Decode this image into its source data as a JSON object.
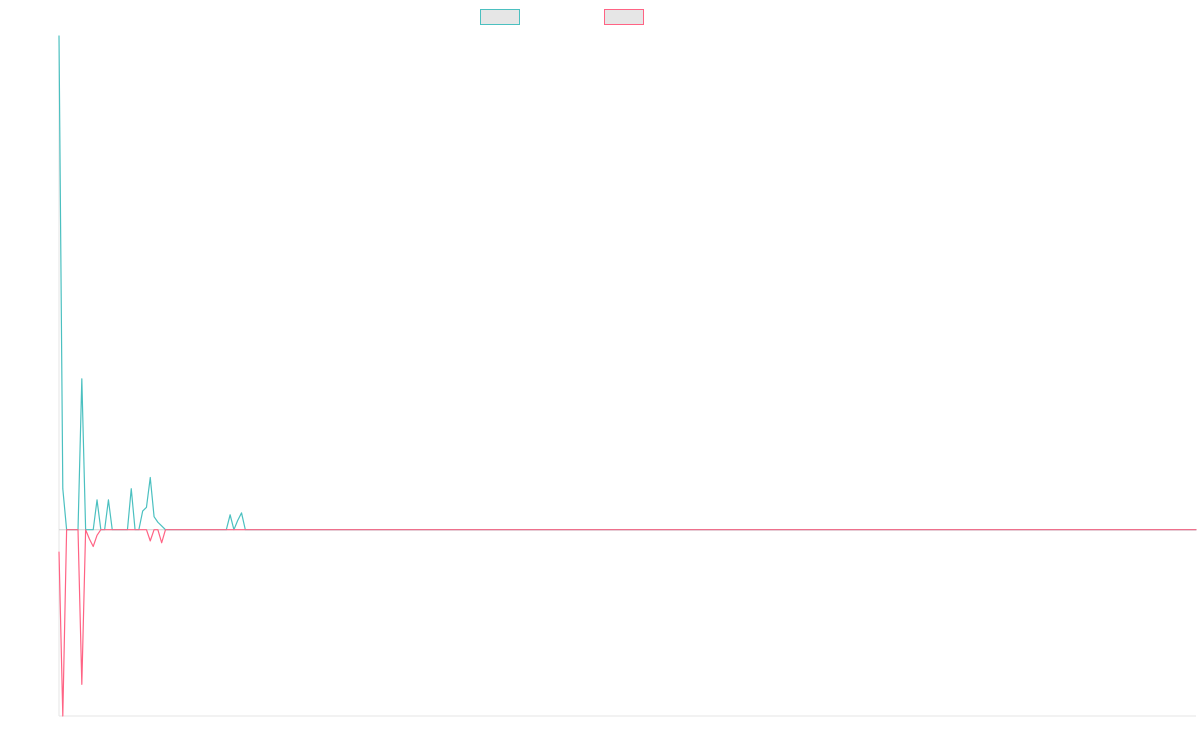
{
  "chart_data": {
    "type": "line",
    "title": "",
    "xlabel": "",
    "ylabel": "",
    "legend": {
      "placement": "top-center",
      "entries": [
        {
          "name": "",
          "color": "#4bc0c0"
        },
        {
          "name": "",
          "color": "#ff6384"
        }
      ]
    },
    "grid": false,
    "ylim": [
      -100,
      265
    ],
    "x": [
      0,
      1,
      2,
      3,
      4,
      5,
      6,
      7,
      8,
      9,
      10,
      11,
      12,
      13,
      14,
      15,
      16,
      17,
      18,
      19,
      20,
      21,
      22,
      23,
      24,
      25,
      26,
      27,
      28,
      29,
      30,
      31,
      32,
      33,
      34,
      35,
      36,
      37,
      38,
      39,
      40,
      41,
      42,
      43,
      44,
      45,
      46,
      47,
      48,
      49,
      50,
      51,
      52,
      53,
      54,
      55,
      56,
      57,
      58,
      59,
      60,
      61,
      62,
      63,
      64,
      65,
      66,
      67,
      68,
      69,
      70,
      71,
      72,
      73,
      74,
      75,
      76,
      77,
      78,
      79,
      80,
      81,
      82,
      83,
      84,
      85,
      86,
      87,
      88,
      89,
      90,
      91,
      92,
      93,
      94,
      95,
      96,
      97,
      98,
      99,
      100,
      101,
      102,
      103,
      104,
      105,
      106,
      107,
      108,
      109,
      110,
      111,
      112,
      113,
      114,
      115,
      116,
      117,
      118,
      119,
      120,
      121,
      122,
      123,
      124,
      125,
      126,
      127,
      128,
      129,
      130,
      131,
      132,
      133,
      134,
      135,
      136,
      137,
      138,
      139,
      140,
      141,
      142,
      143,
      144,
      145,
      146,
      147,
      148,
      149,
      150,
      151,
      152,
      153,
      154,
      155,
      156,
      157,
      158,
      159,
      160,
      161,
      162,
      163,
      164,
      165,
      166,
      167,
      168,
      169,
      170,
      171,
      172,
      173,
      174,
      175,
      176,
      177,
      178,
      179,
      180,
      181,
      182,
      183,
      184,
      185,
      186,
      187,
      188,
      189,
      190,
      191,
      192,
      193,
      194,
      195,
      196,
      197,
      198,
      199,
      200,
      201,
      202,
      203,
      204,
      205,
      206,
      207,
      208,
      209,
      210,
      211,
      212,
      213,
      214,
      215,
      216,
      217,
      218,
      219,
      220,
      221,
      222,
      223,
      224,
      225,
      226,
      227,
      228,
      229,
      230,
      231,
      232,
      233,
      234,
      235,
      236,
      237,
      238,
      239,
      240,
      241,
      242,
      243,
      244,
      245,
      246,
      247,
      248,
      249,
      250,
      251,
      252,
      253,
      254,
      255,
      256,
      257,
      258,
      259,
      260,
      261,
      262,
      263,
      264,
      265,
      266,
      267,
      268,
      269,
      270,
      271,
      272,
      273,
      274,
      275,
      276,
      277,
      278,
      279,
      280,
      281,
      282,
      283,
      284,
      285,
      286,
      287,
      288,
      289,
      290,
      291,
      292,
      293,
      294,
      295,
      296,
      297,
      298,
      299
    ],
    "series": [
      {
        "values": [
          265,
          22,
          0,
          0,
          0,
          0,
          81,
          0,
          0,
          0,
          16,
          0,
          0,
          16,
          0,
          0,
          0,
          0,
          0,
          22,
          0,
          0,
          10,
          12,
          28,
          7,
          4,
          2,
          0,
          0,
          0,
          0,
          0,
          0,
          0,
          0,
          0,
          0,
          0,
          0,
          0,
          0,
          0,
          0,
          0,
          8,
          0,
          5,
          9,
          0,
          0,
          0,
          0,
          0,
          0,
          0,
          0,
          0,
          0,
          0,
          0,
          0,
          0,
          0,
          0,
          0,
          0,
          0,
          0,
          0,
          0,
          0,
          0,
          0,
          0,
          0,
          0,
          0,
          0,
          0,
          0,
          0,
          0,
          0,
          0,
          0,
          0,
          0,
          0,
          0,
          0,
          0,
          0,
          0,
          0,
          0,
          0,
          0,
          0,
          0,
          0,
          0,
          0,
          0,
          0,
          0,
          0,
          0,
          0,
          0,
          0,
          0,
          0,
          0,
          0,
          0,
          0,
          0,
          0,
          0,
          0,
          0,
          0,
          0,
          0,
          0,
          0,
          0,
          0,
          0,
          0,
          0,
          0,
          0,
          0,
          0,
          0,
          0,
          0,
          0,
          0,
          0,
          0,
          0,
          0,
          0,
          0,
          0,
          0,
          0,
          0,
          0,
          0,
          0,
          0,
          0,
          0,
          0,
          0,
          0,
          0,
          0,
          0,
          0,
          0,
          0,
          0,
          0,
          0,
          0,
          0,
          0,
          0,
          0,
          0,
          0,
          0,
          0,
          0,
          0,
          0,
          0,
          0,
          0,
          0,
          0,
          0,
          0,
          0,
          0,
          0,
          0,
          0,
          0,
          0,
          0,
          0,
          0,
          0,
          0,
          0,
          0,
          0,
          0,
          0,
          0,
          0,
          0,
          0,
          0,
          0,
          0,
          0,
          0,
          0,
          0,
          0,
          0,
          0,
          0,
          0,
          0,
          0,
          0,
          0,
          0,
          0,
          0,
          0,
          0,
          0,
          0,
          0,
          0,
          0,
          0,
          0,
          0,
          0,
          0,
          0,
          0,
          0,
          0,
          0,
          0,
          0,
          0,
          0,
          0,
          0,
          0,
          0,
          0,
          0,
          0,
          0,
          0,
          0,
          0,
          0,
          0,
          0,
          0,
          0,
          0,
          0,
          0,
          0,
          0,
          0,
          0,
          0,
          0,
          0,
          0,
          0,
          0,
          0,
          0,
          0,
          0,
          0,
          0,
          0,
          0,
          0,
          0,
          0,
          0,
          0,
          0,
          0,
          0,
          0,
          0,
          0,
          0,
          0,
          0
        ]
      },
      {
        "values": [
          -12,
          -100,
          0,
          0,
          0,
          0,
          -83,
          0,
          -5,
          -9,
          -3,
          0,
          0,
          0,
          0,
          0,
          0,
          0,
          0,
          0,
          0,
          0,
          0,
          0,
          -6,
          0,
          0,
          -7,
          0,
          0,
          0,
          0,
          0,
          0,
          0,
          0,
          0,
          0,
          0,
          0,
          0,
          0,
          0,
          0,
          0,
          0,
          0,
          0,
          0,
          0,
          0,
          0,
          0,
          0,
          0,
          0,
          0,
          0,
          0,
          0,
          0,
          0,
          0,
          0,
          0,
          0,
          0,
          0,
          0,
          0,
          0,
          0,
          0,
          0,
          0,
          0,
          0,
          0,
          0,
          0,
          0,
          0,
          0,
          0,
          0,
          0,
          0,
          0,
          0,
          0,
          0,
          0,
          0,
          0,
          0,
          0,
          0,
          0,
          0,
          0,
          0,
          0,
          0,
          0,
          0,
          0,
          0,
          0,
          0,
          0,
          0,
          0,
          0,
          0,
          0,
          0,
          0,
          0,
          0,
          0,
          0,
          0,
          0,
          0,
          0,
          0,
          0,
          0,
          0,
          0,
          0,
          0,
          0,
          0,
          0,
          0,
          0,
          0,
          0,
          0,
          0,
          0,
          0,
          0,
          0,
          0,
          0,
          0,
          0,
          0,
          0,
          0,
          0,
          0,
          0,
          0,
          0,
          0,
          0,
          0,
          0,
          0,
          0,
          0,
          0,
          0,
          0,
          0,
          0,
          0,
          0,
          0,
          0,
          0,
          0,
          0,
          0,
          0,
          0,
          0,
          0,
          0,
          0,
          0,
          0,
          0,
          0,
          0,
          0,
          0,
          0,
          0,
          0,
          0,
          0,
          0,
          0,
          0,
          0,
          0,
          0,
          0,
          0,
          0,
          0,
          0,
          0,
          0,
          0,
          0,
          0,
          0,
          0,
          0,
          0,
          0,
          0,
          0,
          0,
          0,
          0,
          0,
          0,
          0,
          0,
          0,
          0,
          0,
          0,
          0,
          0,
          0,
          0,
          0,
          0,
          0,
          0,
          0,
          0,
          0,
          0,
          0,
          0,
          0,
          0,
          0,
          0,
          0,
          0,
          0,
          0,
          0,
          0,
          0,
          0,
          0,
          0,
          0,
          0,
          0,
          0,
          0,
          0,
          0,
          0,
          0,
          0,
          0,
          0,
          0,
          0,
          0,
          0,
          0,
          0,
          0,
          0,
          0,
          0,
          0,
          0,
          0,
          0,
          0,
          0,
          0,
          0,
          0,
          0,
          0,
          0,
          0,
          0,
          0,
          0,
          0,
          0,
          0,
          0,
          0
        ]
      }
    ]
  }
}
